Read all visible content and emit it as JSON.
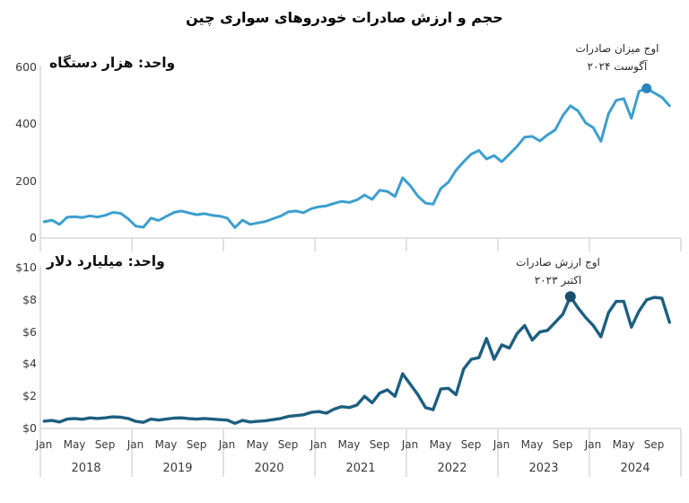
{
  "title": "حجم و ارزش صادرات خودروهای سواری چین",
  "x_axis": {
    "start_month": "Jan 2018",
    "end_month": "Nov 2024",
    "months_per_year": [
      "Jan",
      "May",
      "Sep"
    ],
    "years": [
      "2018",
      "2019",
      "2020",
      "2021",
      "2022",
      "2023",
      "2024"
    ]
  },
  "chart_data": [
    {
      "type": "line",
      "name": "export-volume",
      "unit_label": "واحد: هزار دستگاه",
      "annotation": {
        "line1": "اوج میزان صادرات",
        "line2": "آگوست ۲۰۲۴",
        "peak_index": 79,
        "peak_value": 526
      },
      "color": "#3d9fce",
      "marker_color": "#2a86bb",
      "ylim": [
        0,
        600
      ],
      "yticks": [
        0,
        200,
        400,
        600
      ],
      "ytick_labels": [
        "0",
        "200",
        "400",
        "600"
      ],
      "values": [
        57,
        63,
        48,
        73,
        75,
        72,
        78,
        74,
        80,
        90,
        87,
        68,
        42,
        38,
        70,
        62,
        76,
        90,
        95,
        88,
        82,
        86,
        80,
        77,
        70,
        37,
        63,
        48,
        53,
        58,
        68,
        77,
        92,
        95,
        89,
        103,
        110,
        113,
        122,
        129,
        125,
        134,
        151,
        136,
        168,
        164,
        146,
        212,
        184,
        147,
        123,
        119,
        174,
        196,
        238,
        268,
        295,
        308,
        278,
        290,
        268,
        295,
        322,
        355,
        357,
        341,
        363,
        380,
        430,
        465,
        447,
        405,
        388,
        340,
        437,
        484,
        490,
        421,
        516,
        526,
        510,
        495,
        465
      ]
    },
    {
      "type": "line",
      "name": "export-value",
      "unit_label": "واحد: میلیارد دلار",
      "annotation": {
        "line1": "اوج ارزش صادرات",
        "line2": "اکتبر ۲۰۲۳",
        "peak_index": 69,
        "peak_value": 8.2
      },
      "color": "#1d5f80",
      "marker_color": "#174f6c",
      "ylim": [
        0,
        10
      ],
      "yticks": [
        0,
        2,
        4,
        6,
        8,
        10
      ],
      "ytick_labels": [
        "$0",
        "$2",
        "$4",
        "$6",
        "$8",
        "$10"
      ],
      "values": [
        0.45,
        0.5,
        0.4,
        0.58,
        0.62,
        0.57,
        0.66,
        0.62,
        0.66,
        0.72,
        0.7,
        0.62,
        0.44,
        0.38,
        0.58,
        0.52,
        0.58,
        0.64,
        0.66,
        0.61,
        0.58,
        0.62,
        0.58,
        0.55,
        0.52,
        0.32,
        0.5,
        0.4,
        0.44,
        0.48,
        0.55,
        0.62,
        0.75,
        0.8,
        0.85,
        1.0,
        1.05,
        0.95,
        1.2,
        1.35,
        1.3,
        1.45,
        2.0,
        1.6,
        2.2,
        2.4,
        2.0,
        3.4,
        2.75,
        2.1,
        1.3,
        1.17,
        2.45,
        2.5,
        2.1,
        3.7,
        4.3,
        4.4,
        5.6,
        4.3,
        5.2,
        5.0,
        5.9,
        6.4,
        5.5,
        6.0,
        6.1,
        6.6,
        7.1,
        8.2,
        7.5,
        6.9,
        6.4,
        5.7,
        7.2,
        7.9,
        7.9,
        6.3,
        7.3,
        8.0,
        8.15,
        8.1,
        6.6
      ]
    }
  ]
}
